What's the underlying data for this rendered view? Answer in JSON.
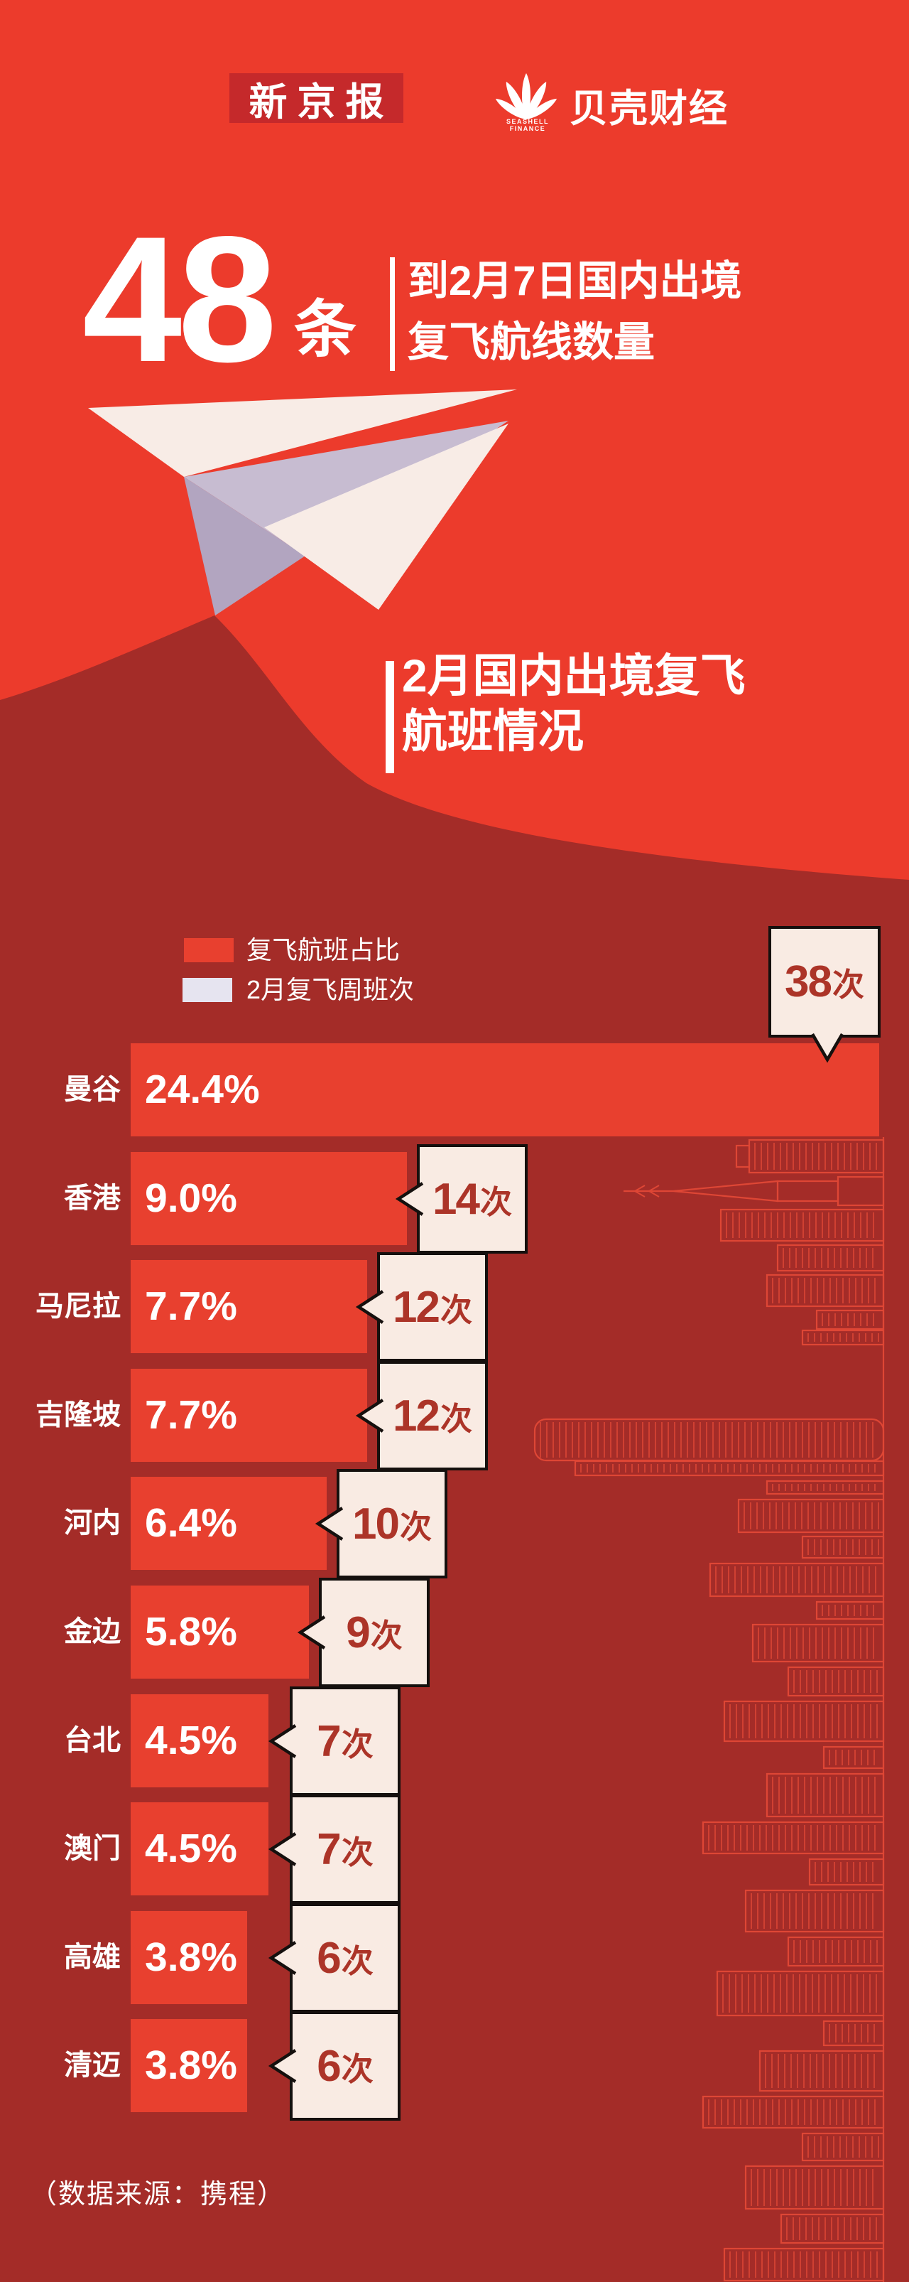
{
  "header": {
    "masthead": "新京报",
    "brand": "贝壳财经",
    "brand_sub": "SEASHELL FINANCE"
  },
  "headline": {
    "number": "48",
    "unit": "条",
    "desc_line1": "到2月7日国内出境",
    "desc_line2": "复飞航线数量"
  },
  "section_title": {
    "line1": "2月国内出境复飞",
    "line2": "航班情况"
  },
  "legend": [
    {
      "label": "复飞航班占比",
      "swatch": "#E8402F"
    },
    {
      "label": "2月复飞周班次",
      "swatch": "#E6E4F0"
    }
  ],
  "chart_data": {
    "type": "bar",
    "orientation": "horizontal",
    "title": "2月国内出境复飞航班情况",
    "categories": [
      "曼谷",
      "香港",
      "马尼拉",
      "吉隆坡",
      "河内",
      "金边",
      "台北",
      "澳门",
      "高雄",
      "清迈"
    ],
    "series": [
      {
        "name": "复飞航班占比",
        "unit": "%",
        "values": [
          24.4,
          9.0,
          7.7,
          7.7,
          6.4,
          5.8,
          4.5,
          4.5,
          3.8,
          3.8
        ]
      },
      {
        "name": "2月复飞周班次",
        "unit": "次",
        "values": [
          38,
          14,
          12,
          12,
          10,
          9,
          7,
          7,
          6,
          6
        ]
      }
    ],
    "xlim": [
      0,
      24.4
    ],
    "grid": false,
    "legend_position": "top-left",
    "value_label_format": "x.x%"
  },
  "source_note": "（数据来源：携程）",
  "colors": {
    "background_top": "#EC3B2C",
    "background_bottom": "#A42C28",
    "bar": "#E8402F",
    "bubble_fill": "#F9EBE3",
    "bubble_border": "#15100E",
    "bubble_text": "#AC3428",
    "masthead_box": "#C5292B",
    "skyline_stroke": "#DE4635",
    "plane_cream": "#F8ECE6",
    "plane_lavender_light": "#C7BCD1",
    "plane_lavender_dark": "#B2A5C0",
    "text": "#FFFFFF"
  }
}
